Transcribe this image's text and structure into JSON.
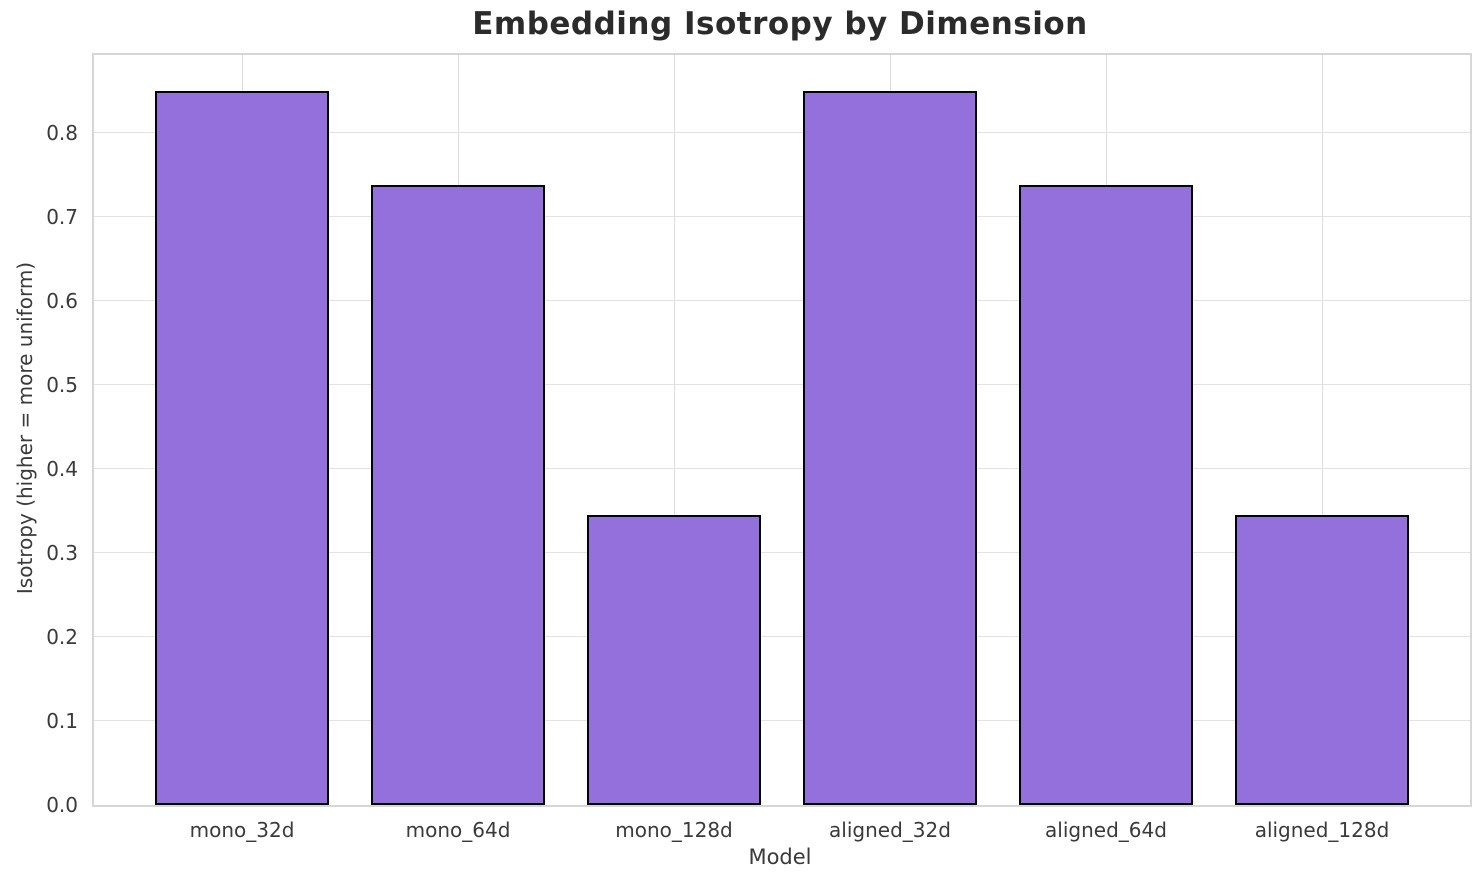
{
  "figure": {
    "background_color": "#ffffff"
  },
  "chart_data": {
    "type": "bar",
    "title": "Embedding Isotropy by Dimension",
    "xlabel": "Model",
    "ylabel": "Isotropy (higher = more uniform)",
    "categories": [
      "mono_32d",
      "mono_64d",
      "mono_128d",
      "aligned_32d",
      "aligned_64d",
      "aligned_128d"
    ],
    "values": [
      0.85,
      0.738,
      0.345,
      0.85,
      0.738,
      0.345
    ],
    "ylim": [
      0,
      0.8925
    ],
    "yticks": [
      0.0,
      0.1,
      0.2,
      0.3,
      0.4,
      0.5,
      0.6,
      0.7,
      0.8
    ],
    "grid": "on",
    "legend": "none",
    "bar_fill_color": "#9370DB",
    "bar_edge_color": "#000000",
    "grid_color": "#e2e2e2",
    "spine_color": "#d6d6d6",
    "title_color": "#2b2b2b",
    "tick_text_color": "#3a3a3a"
  }
}
